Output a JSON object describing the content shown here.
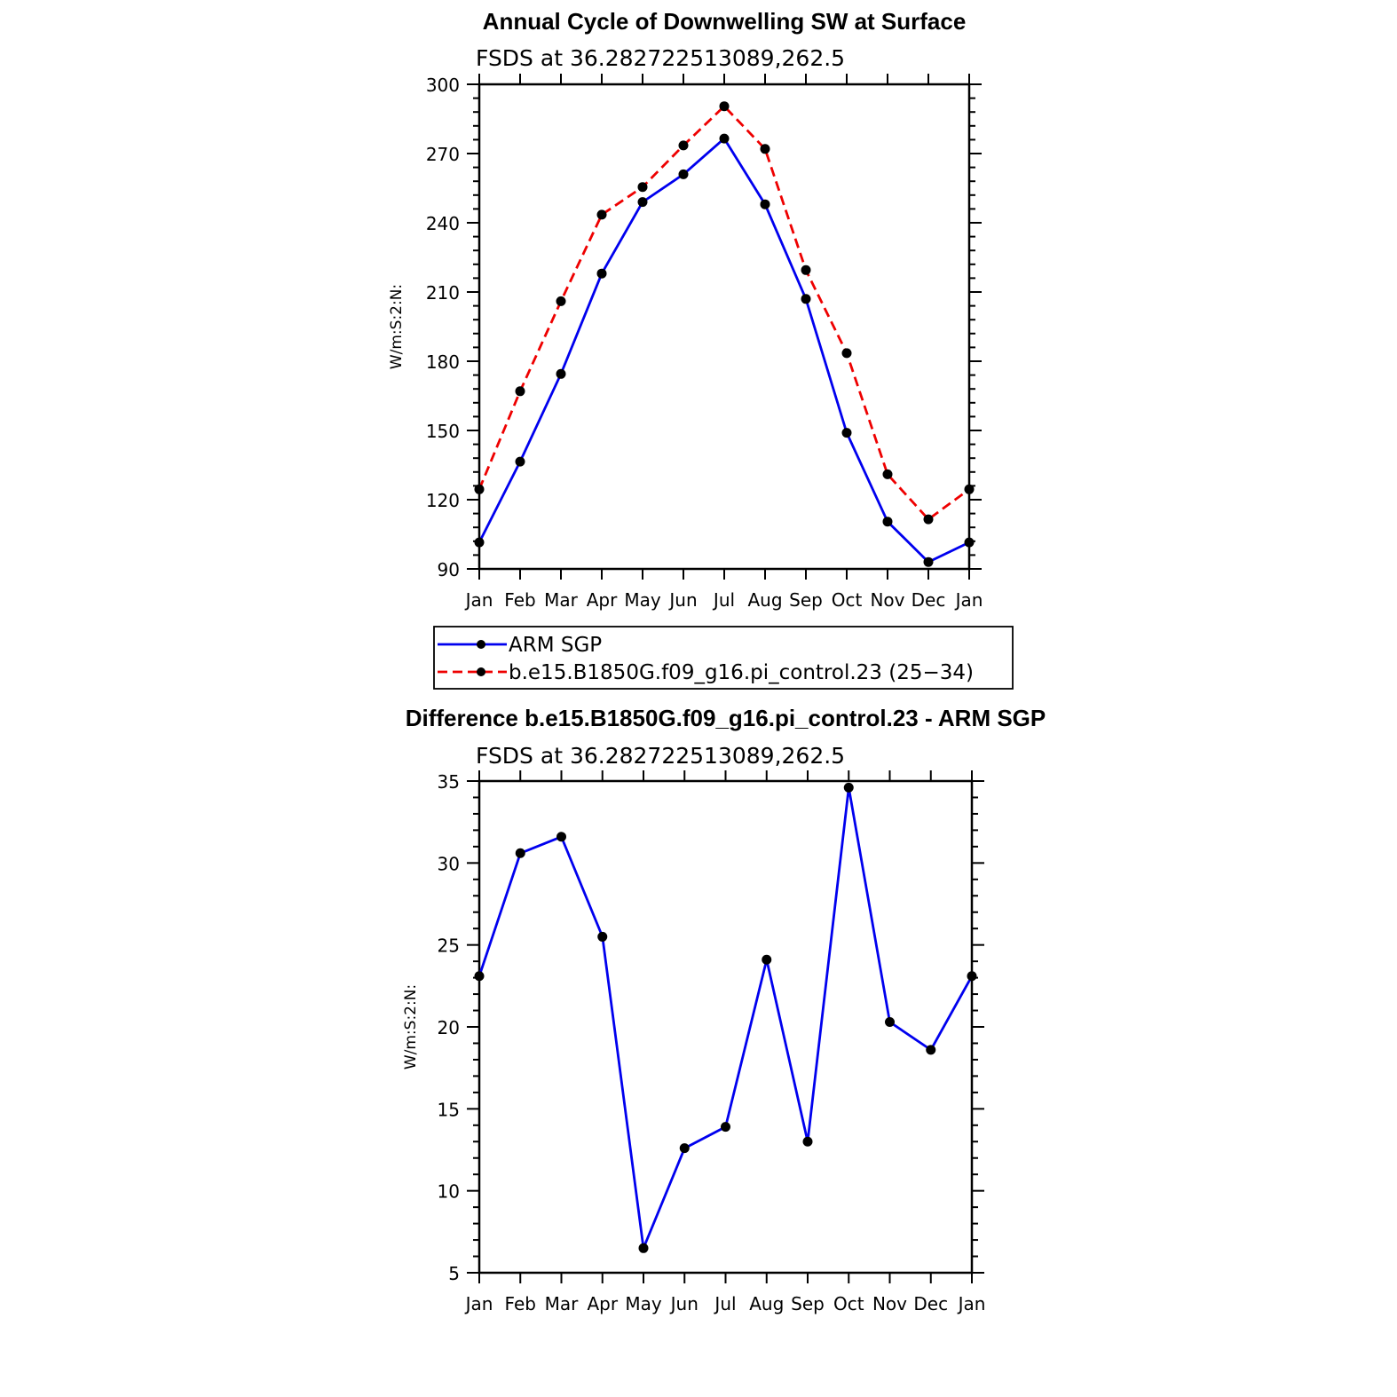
{
  "chart_data": [
    {
      "type": "line",
      "title": "Annual Cycle of Downwelling SW at Surface",
      "subtitle": "FSDS at 36.282722513089,262.5",
      "ylabel": "W/m:S:2:N:",
      "xlabel": "",
      "categories": [
        "Jan",
        "Feb",
        "Mar",
        "Apr",
        "May",
        "Jun",
        "Jul",
        "Aug",
        "Sep",
        "Oct",
        "Nov",
        "Dec",
        "Jan"
      ],
      "ylim": [
        90,
        300
      ],
      "yticks": [
        90,
        120,
        150,
        180,
        210,
        240,
        270,
        300
      ],
      "grid": false,
      "legend_placement": "below",
      "series": [
        {
          "name": "ARM SGP",
          "color": "#0000ee",
          "dash": "solid",
          "values": [
            101.5,
            136.5,
            174.5,
            218,
            249,
            261,
            276.5,
            248,
            207,
            149,
            110.5,
            93,
            101.5
          ]
        },
        {
          "name": "b.e15.B1850G.f09_g16.pi_control.23 (25−34)",
          "color": "#ee0000",
          "dash": "dashed",
          "values": [
            124.5,
            167,
            206,
            243.5,
            255.5,
            273.5,
            290.5,
            272,
            219.5,
            183.5,
            131,
            111.5,
            124.5
          ]
        }
      ]
    },
    {
      "type": "line",
      "title": "Difference b.e15.B1850G.f09_g16.pi_control.23 - ARM SGP",
      "subtitle": "FSDS at 36.282722513089,262.5",
      "ylabel": "W/m:S:2:N:",
      "xlabel": "",
      "categories": [
        "Jan",
        "Feb",
        "Mar",
        "Apr",
        "May",
        "Jun",
        "Jul",
        "Aug",
        "Sep",
        "Oct",
        "Nov",
        "Dec",
        "Jan"
      ],
      "ylim": [
        5,
        35
      ],
      "yticks": [
        5,
        10,
        15,
        20,
        25,
        30,
        35
      ],
      "grid": false,
      "series": [
        {
          "color": "#0000ee",
          "dash": "solid",
          "values": [
            23.1,
            30.6,
            31.6,
            25.5,
            6.5,
            12.6,
            13.9,
            24.1,
            13,
            34.6,
            20.3,
            18.6,
            23.1
          ]
        }
      ]
    }
  ]
}
